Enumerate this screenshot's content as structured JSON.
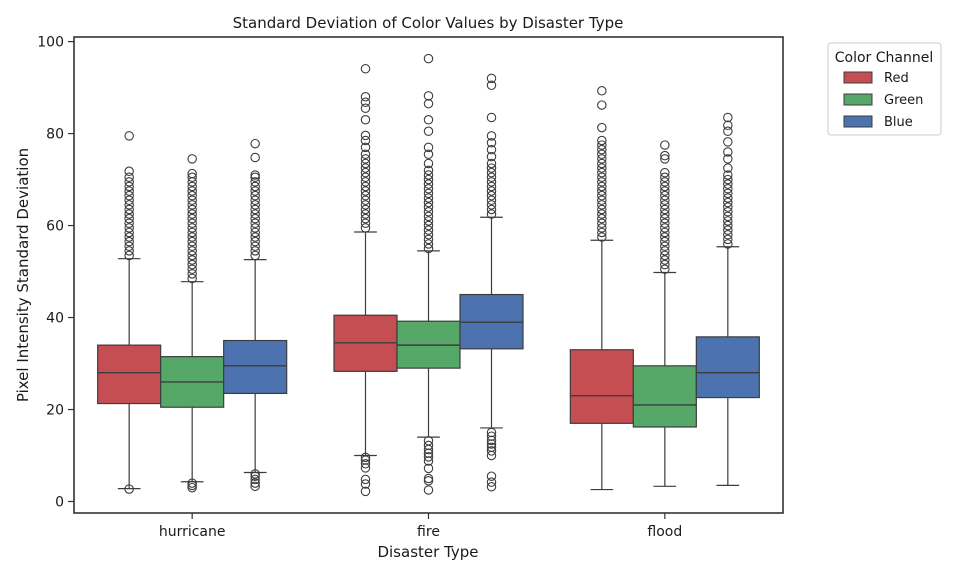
{
  "chart_data": {
    "type": "box",
    "title": "Standard Deviation of Color Values by Disaster Type",
    "xlabel": "Disaster Type",
    "ylabel": "Pixel Intensity Standard Deviation",
    "categories": [
      "hurricane",
      "fire",
      "flood"
    ],
    "ylim": [
      -2.5,
      101
    ],
    "yticks": [
      0,
      20,
      40,
      60,
      80,
      100
    ],
    "legend": {
      "title": "Color Channel",
      "placement": "outside-top-right"
    },
    "series": [
      {
        "name": "Red",
        "color": "#c44e52",
        "boxes": [
          {
            "category": "hurricane",
            "whisker_low": 2.8,
            "q1": 21.3,
            "median": 28.0,
            "q3": 34.0,
            "whisker_high": 52.8,
            "outliers": [
              2.7,
              53.5,
              54.5,
              55.5,
              56.5,
              57.5,
              58.5,
              59.5,
              60.5,
              61.5,
              62.5,
              63.5,
              64.5,
              65.5,
              66.5,
              67.5,
              68.5,
              69.5,
              70.5,
              71.8,
              79.5
            ]
          },
          {
            "category": "fire",
            "whisker_low": 10.0,
            "q1": 28.3,
            "median": 34.5,
            "q3": 40.5,
            "whisker_high": 58.6,
            "outliers": [
              2.2,
              3.8,
              4.8,
              7.3,
              8.2,
              9.0,
              9.6,
              59.5,
              60.5,
              61.5,
              62.5,
              63.5,
              64.5,
              65.5,
              66.5,
              67.5,
              68.5,
              69.5,
              70.5,
              71.5,
              72.5,
              73.5,
              74.5,
              75.5,
              77.0,
              78.5,
              79.6,
              83.0,
              85.5,
              86.8,
              88.0,
              94.1
            ]
          },
          {
            "category": "flood",
            "whisker_low": 2.6,
            "q1": 17.0,
            "median": 23.0,
            "q3": 33.0,
            "whisker_high": 56.8,
            "outliers": [
              57.5,
              58.5,
              59.5,
              60.5,
              61.5,
              62.5,
              63.5,
              64.5,
              65.5,
              66.5,
              67.5,
              68.5,
              69.5,
              70.5,
              71.5,
              72.5,
              73.5,
              74.5,
              75.5,
              76.5,
              77.5,
              78.5,
              81.3,
              86.2,
              89.3
            ]
          }
        ]
      },
      {
        "name": "Green",
        "color": "#55a868",
        "boxes": [
          {
            "category": "hurricane",
            "whisker_low": 4.3,
            "q1": 20.5,
            "median": 26.0,
            "q3": 31.5,
            "whisker_high": 47.8,
            "outliers": [
              3.0,
              3.5,
              4.0,
              48.5,
              49.5,
              50.5,
              51.5,
              52.5,
              53.5,
              54.5,
              55.5,
              56.5,
              57.5,
              58.5,
              59.5,
              60.5,
              61.5,
              62.5,
              63.5,
              64.5,
              65.5,
              66.5,
              67.5,
              68.5,
              69.5,
              70.5,
              71.3,
              74.5
            ]
          },
          {
            "category": "fire",
            "whisker_low": 14.0,
            "q1": 29.0,
            "median": 34.0,
            "q3": 39.2,
            "whisker_high": 54.5,
            "outliers": [
              2.5,
              4.5,
              5.0,
              7.2,
              8.8,
              9.7,
              10.5,
              11.3,
              12.2,
              13.2,
              55.0,
              56.0,
              57.0,
              58.0,
              59.0,
              60.0,
              61.0,
              62.0,
              63.0,
              64.0,
              65.0,
              66.0,
              67.0,
              68.0,
              69.0,
              70.0,
              71.0,
              72.0,
              73.5,
              75.5,
              77.0,
              80.5,
              83.0,
              86.5,
              88.2,
              96.3
            ]
          },
          {
            "category": "flood",
            "whisker_low": 3.3,
            "q1": 16.2,
            "median": 21.0,
            "q3": 29.5,
            "whisker_high": 49.8,
            "outliers": [
              50.5,
              51.5,
              52.5,
              53.5,
              54.5,
              55.5,
              56.5,
              57.5,
              58.5,
              59.5,
              60.5,
              61.5,
              62.5,
              63.5,
              64.5,
              65.5,
              66.5,
              67.5,
              68.5,
              69.5,
              70.5,
              71.5,
              74.5,
              75.2,
              77.5
            ]
          }
        ]
      },
      {
        "name": "Blue",
        "color": "#4c72b0",
        "boxes": [
          {
            "category": "hurricane",
            "whisker_low": 6.3,
            "q1": 23.5,
            "median": 29.5,
            "q3": 35.0,
            "whisker_high": 52.6,
            "outliers": [
              3.3,
              4.0,
              4.8,
              5.5,
              6.0,
              53.5,
              54.5,
              55.5,
              56.5,
              57.5,
              58.5,
              59.5,
              60.5,
              61.5,
              62.5,
              63.5,
              64.5,
              65.5,
              66.5,
              67.5,
              68.5,
              69.5,
              70.5,
              71.0,
              74.8,
              77.8
            ]
          },
          {
            "category": "fire",
            "whisker_low": 16.0,
            "q1": 33.2,
            "median": 39.0,
            "q3": 45.0,
            "whisker_high": 61.8,
            "outliers": [
              3.2,
              4.2,
              5.5,
              10.0,
              11.0,
              11.8,
              12.5,
              13.3,
              14.2,
              15.0,
              62.5,
              63.5,
              64.5,
              65.5,
              66.5,
              67.5,
              68.5,
              69.5,
              70.5,
              71.5,
              72.5,
              73.5,
              75.0,
              76.5,
              78.0,
              79.5,
              83.5,
              90.5,
              92.0
            ]
          },
          {
            "category": "flood",
            "whisker_low": 3.5,
            "q1": 22.6,
            "median": 28.0,
            "q3": 35.8,
            "whisker_high": 55.4,
            "outliers": [
              56.0,
              57.0,
              58.0,
              59.0,
              60.0,
              61.0,
              62.0,
              63.0,
              64.0,
              65.0,
              66.0,
              67.0,
              68.0,
              69.0,
              70.0,
              71.0,
              72.5,
              74.5,
              76.0,
              78.2,
              80.5,
              81.8,
              83.5
            ]
          }
        ]
      }
    ]
  }
}
